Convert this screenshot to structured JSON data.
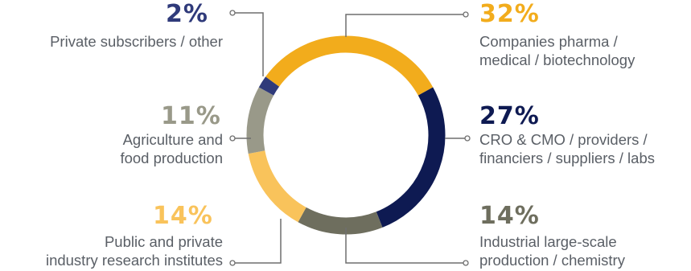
{
  "chart_data": {
    "type": "donut",
    "series": [
      {
        "value": 32,
        "display": "32%",
        "label_lines": [
          "Companies pharma /",
          "medical / biotechnology"
        ],
        "color": "#f2ac1c",
        "legend_position": "top-right"
      },
      {
        "value": 27,
        "display": "27%",
        "label_lines": [
          "CRO & CMO / providers /",
          "financiers / suppliers / labs"
        ],
        "color": "#0e1a52",
        "legend_position": "middle-right"
      },
      {
        "value": 14,
        "display": "14%",
        "label_lines": [
          "Industrial large-scale",
          "production / chemistry"
        ],
        "color": "#6e6e5e",
        "legend_position": "bottom-right"
      },
      {
        "value": 14,
        "display": "14%",
        "label_lines": [
          "Public and private",
          "industry research institutes"
        ],
        "color": "#f9c35b",
        "legend_position": "bottom-left"
      },
      {
        "value": 11,
        "display": "11%",
        "label_lines": [
          "Agriculture and",
          "food production"
        ],
        "color": "#999989",
        "legend_position": "middle-left"
      },
      {
        "value": 2,
        "display": "2%",
        "label_lines": [
          "Private subscribers / other"
        ],
        "color": "#2f3a7a",
        "legend_position": "top-left"
      }
    ]
  }
}
